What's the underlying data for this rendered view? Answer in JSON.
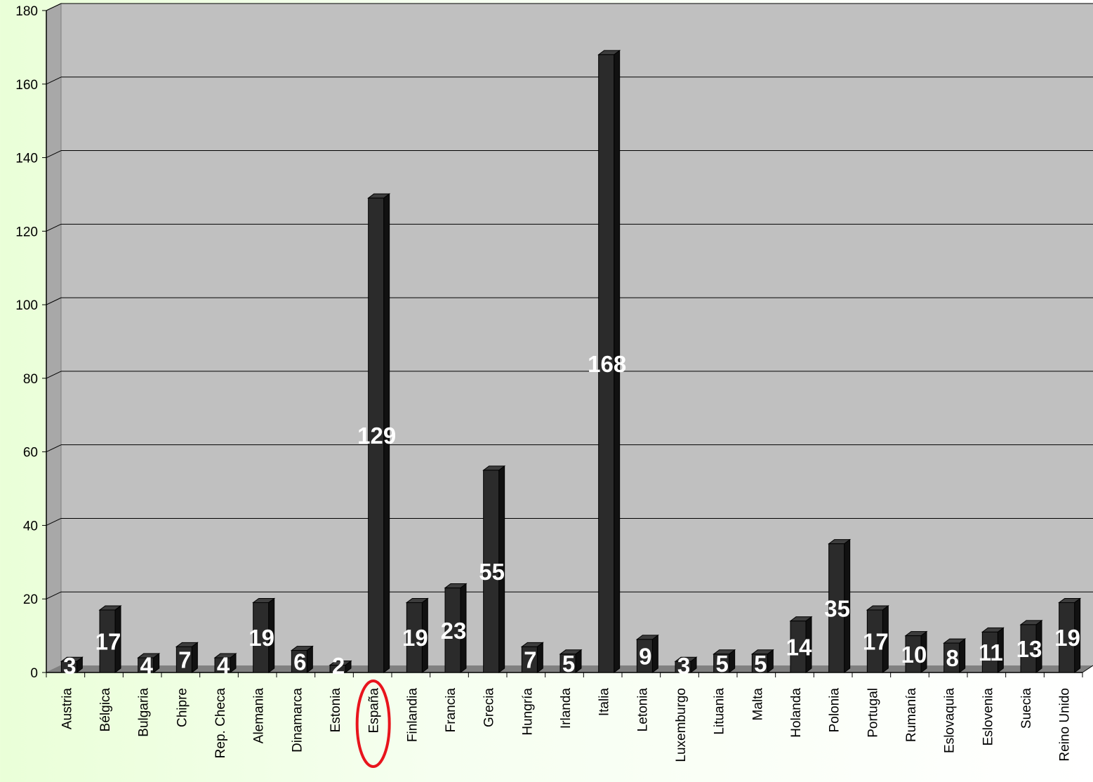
{
  "chart_data": {
    "type": "bar",
    "title": "",
    "xlabel": "",
    "ylabel": "",
    "ylim": [
      0,
      180
    ],
    "yticks": [
      0,
      20,
      40,
      60,
      80,
      100,
      120,
      140,
      160,
      180
    ],
    "grid": true,
    "legend": "none",
    "categories": [
      "Austria",
      "Bélgica",
      "Bulgaria",
      "Chipre",
      "Rep. Checa",
      "Alemania",
      "Dinamarca",
      "Estonia",
      "España",
      "Finlandia",
      "Francia",
      "Grecia",
      "Hungría",
      "Irlanda",
      "Italia",
      "Letonia",
      "Luxemburgo",
      "Lituania",
      "Malta",
      "Holanda",
      "Polonia",
      "Portugal",
      "Rumanía",
      "Eslovaquia",
      "Eslovenia",
      "Suecia",
      "Reino Unido"
    ],
    "values": [
      3,
      17,
      4,
      7,
      4,
      19,
      6,
      2,
      129,
      19,
      23,
      55,
      7,
      5,
      168,
      9,
      3,
      5,
      5,
      14,
      35,
      17,
      10,
      8,
      11,
      13,
      19
    ],
    "data_labels": [
      "3",
      "17",
      "4",
      "7",
      "4",
      "19",
      "6",
      "2",
      "129",
      "19",
      "23",
      "55",
      "7",
      "5",
      "168",
      "9",
      "3",
      "5",
      "5",
      "14",
      "35",
      "17",
      "10",
      "8",
      "11",
      "13",
      "19"
    ],
    "highlighted_category": "España",
    "colors": {
      "bar": "#2b2b2b",
      "bar_side": "#111111",
      "bar_top": "#3d3d3d",
      "plot_background": "#c0c0c0",
      "floor": "#808080",
      "gridline": "#000000",
      "data_label": "#ffffff",
      "highlight_ellipse": "#e8141c"
    }
  }
}
